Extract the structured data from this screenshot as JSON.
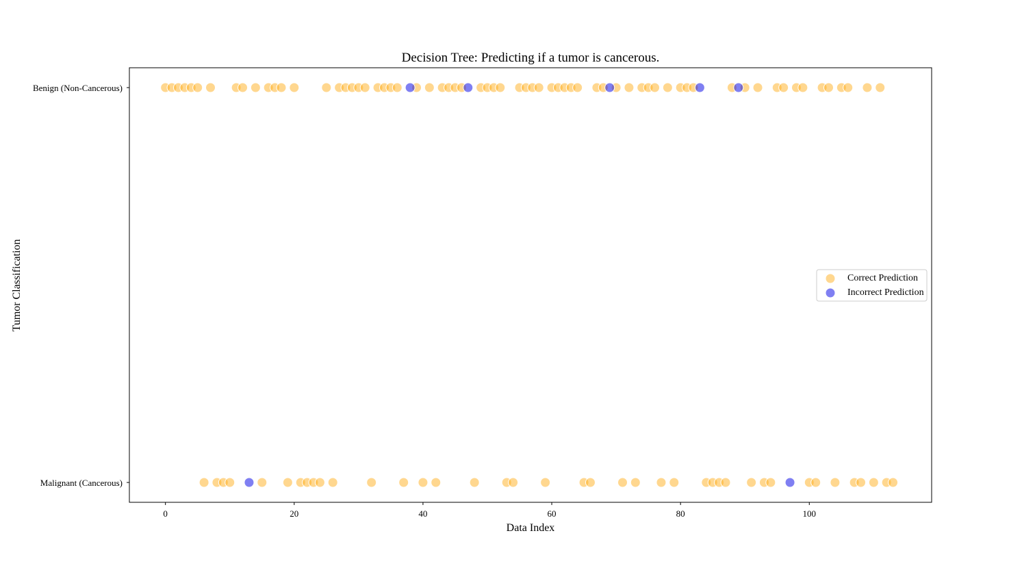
{
  "chart_data": {
    "type": "scatter",
    "title": "Decision Tree: Predicting if a tumor is cancerous.",
    "xlabel": "Data Index",
    "ylabel": "Tumor Classification",
    "xlim": [
      -5.6,
      119
    ],
    "x_ticks": [
      0,
      20,
      40,
      60,
      80,
      100
    ],
    "y_categories": [
      "Malignant (Cancerous)",
      "Benign (Non-Cancerous)"
    ],
    "grid": false,
    "legend": {
      "position": "center-right",
      "entries": [
        "Correct Prediction",
        "Incorrect Prediction"
      ]
    },
    "colors": {
      "correct": "#ffb01f",
      "incorrect": "#0000e6"
    },
    "series": [
      {
        "name": "Correct Prediction",
        "points": [
          {
            "x": 0,
            "y": "Benign (Non-Cancerous)"
          },
          {
            "x": 1,
            "y": "Benign (Non-Cancerous)"
          },
          {
            "x": 2,
            "y": "Benign (Non-Cancerous)"
          },
          {
            "x": 3,
            "y": "Benign (Non-Cancerous)"
          },
          {
            "x": 4,
            "y": "Benign (Non-Cancerous)"
          },
          {
            "x": 5,
            "y": "Benign (Non-Cancerous)"
          },
          {
            "x": 6,
            "y": "Malignant (Cancerous)"
          },
          {
            "x": 7,
            "y": "Benign (Non-Cancerous)"
          },
          {
            "x": 8,
            "y": "Malignant (Cancerous)"
          },
          {
            "x": 9,
            "y": "Malignant (Cancerous)"
          },
          {
            "x": 10,
            "y": "Malignant (Cancerous)"
          },
          {
            "x": 11,
            "y": "Benign (Non-Cancerous)"
          },
          {
            "x": 12,
            "y": "Benign (Non-Cancerous)"
          },
          {
            "x": 14,
            "y": "Benign (Non-Cancerous)"
          },
          {
            "x": 15,
            "y": "Malignant (Cancerous)"
          },
          {
            "x": 16,
            "y": "Benign (Non-Cancerous)"
          },
          {
            "x": 17,
            "y": "Benign (Non-Cancerous)"
          },
          {
            "x": 18,
            "y": "Benign (Non-Cancerous)"
          },
          {
            "x": 19,
            "y": "Malignant (Cancerous)"
          },
          {
            "x": 20,
            "y": "Benign (Non-Cancerous)"
          },
          {
            "x": 21,
            "y": "Malignant (Cancerous)"
          },
          {
            "x": 22,
            "y": "Malignant (Cancerous)"
          },
          {
            "x": 23,
            "y": "Malignant (Cancerous)"
          },
          {
            "x": 24,
            "y": "Malignant (Cancerous)"
          },
          {
            "x": 25,
            "y": "Benign (Non-Cancerous)"
          },
          {
            "x": 26,
            "y": "Malignant (Cancerous)"
          },
          {
            "x": 27,
            "y": "Benign (Non-Cancerous)"
          },
          {
            "x": 28,
            "y": "Benign (Non-Cancerous)"
          },
          {
            "x": 29,
            "y": "Benign (Non-Cancerous)"
          },
          {
            "x": 30,
            "y": "Benign (Non-Cancerous)"
          },
          {
            "x": 31,
            "y": "Benign (Non-Cancerous)"
          },
          {
            "x": 32,
            "y": "Malignant (Cancerous)"
          },
          {
            "x": 33,
            "y": "Benign (Non-Cancerous)"
          },
          {
            "x": 34,
            "y": "Benign (Non-Cancerous)"
          },
          {
            "x": 35,
            "y": "Benign (Non-Cancerous)"
          },
          {
            "x": 36,
            "y": "Benign (Non-Cancerous)"
          },
          {
            "x": 37,
            "y": "Malignant (Cancerous)"
          },
          {
            "x": 39,
            "y": "Benign (Non-Cancerous)"
          },
          {
            "x": 40,
            "y": "Malignant (Cancerous)"
          },
          {
            "x": 41,
            "y": "Benign (Non-Cancerous)"
          },
          {
            "x": 42,
            "y": "Malignant (Cancerous)"
          },
          {
            "x": 43,
            "y": "Benign (Non-Cancerous)"
          },
          {
            "x": 44,
            "y": "Benign (Non-Cancerous)"
          },
          {
            "x": 45,
            "y": "Benign (Non-Cancerous)"
          },
          {
            "x": 46,
            "y": "Benign (Non-Cancerous)"
          },
          {
            "x": 48,
            "y": "Malignant (Cancerous)"
          },
          {
            "x": 49,
            "y": "Benign (Non-Cancerous)"
          },
          {
            "x": 50,
            "y": "Benign (Non-Cancerous)"
          },
          {
            "x": 51,
            "y": "Benign (Non-Cancerous)"
          },
          {
            "x": 52,
            "y": "Benign (Non-Cancerous)"
          },
          {
            "x": 53,
            "y": "Malignant (Cancerous)"
          },
          {
            "x": 54,
            "y": "Malignant (Cancerous)"
          },
          {
            "x": 55,
            "y": "Benign (Non-Cancerous)"
          },
          {
            "x": 56,
            "y": "Benign (Non-Cancerous)"
          },
          {
            "x": 57,
            "y": "Benign (Non-Cancerous)"
          },
          {
            "x": 58,
            "y": "Benign (Non-Cancerous)"
          },
          {
            "x": 59,
            "y": "Malignant (Cancerous)"
          },
          {
            "x": 60,
            "y": "Benign (Non-Cancerous)"
          },
          {
            "x": 61,
            "y": "Benign (Non-Cancerous)"
          },
          {
            "x": 62,
            "y": "Benign (Non-Cancerous)"
          },
          {
            "x": 63,
            "y": "Benign (Non-Cancerous)"
          },
          {
            "x": 64,
            "y": "Benign (Non-Cancerous)"
          },
          {
            "x": 65,
            "y": "Malignant (Cancerous)"
          },
          {
            "x": 66,
            "y": "Malignant (Cancerous)"
          },
          {
            "x": 67,
            "y": "Benign (Non-Cancerous)"
          },
          {
            "x": 68,
            "y": "Benign (Non-Cancerous)"
          },
          {
            "x": 70,
            "y": "Benign (Non-Cancerous)"
          },
          {
            "x": 71,
            "y": "Malignant (Cancerous)"
          },
          {
            "x": 72,
            "y": "Benign (Non-Cancerous)"
          },
          {
            "x": 73,
            "y": "Malignant (Cancerous)"
          },
          {
            "x": 74,
            "y": "Benign (Non-Cancerous)"
          },
          {
            "x": 75,
            "y": "Benign (Non-Cancerous)"
          },
          {
            "x": 76,
            "y": "Benign (Non-Cancerous)"
          },
          {
            "x": 77,
            "y": "Malignant (Cancerous)"
          },
          {
            "x": 78,
            "y": "Benign (Non-Cancerous)"
          },
          {
            "x": 79,
            "y": "Malignant (Cancerous)"
          },
          {
            "x": 80,
            "y": "Benign (Non-Cancerous)"
          },
          {
            "x": 81,
            "y": "Benign (Non-Cancerous)"
          },
          {
            "x": 82,
            "y": "Benign (Non-Cancerous)"
          },
          {
            "x": 84,
            "y": "Malignant (Cancerous)"
          },
          {
            "x": 85,
            "y": "Malignant (Cancerous)"
          },
          {
            "x": 86,
            "y": "Malignant (Cancerous)"
          },
          {
            "x": 87,
            "y": "Malignant (Cancerous)"
          },
          {
            "x": 88,
            "y": "Benign (Non-Cancerous)"
          },
          {
            "x": 90,
            "y": "Benign (Non-Cancerous)"
          },
          {
            "x": 91,
            "y": "Malignant (Cancerous)"
          },
          {
            "x": 92,
            "y": "Benign (Non-Cancerous)"
          },
          {
            "x": 93,
            "y": "Malignant (Cancerous)"
          },
          {
            "x": 94,
            "y": "Malignant (Cancerous)"
          },
          {
            "x": 95,
            "y": "Benign (Non-Cancerous)"
          },
          {
            "x": 96,
            "y": "Benign (Non-Cancerous)"
          },
          {
            "x": 98,
            "y": "Benign (Non-Cancerous)"
          },
          {
            "x": 99,
            "y": "Benign (Non-Cancerous)"
          },
          {
            "x": 100,
            "y": "Malignant (Cancerous)"
          },
          {
            "x": 101,
            "y": "Malignant (Cancerous)"
          },
          {
            "x": 102,
            "y": "Benign (Non-Cancerous)"
          },
          {
            "x": 103,
            "y": "Benign (Non-Cancerous)"
          },
          {
            "x": 104,
            "y": "Malignant (Cancerous)"
          },
          {
            "x": 105,
            "y": "Benign (Non-Cancerous)"
          },
          {
            "x": 106,
            "y": "Benign (Non-Cancerous)"
          },
          {
            "x": 107,
            "y": "Malignant (Cancerous)"
          },
          {
            "x": 108,
            "y": "Malignant (Cancerous)"
          },
          {
            "x": 109,
            "y": "Benign (Non-Cancerous)"
          },
          {
            "x": 110,
            "y": "Malignant (Cancerous)"
          },
          {
            "x": 111,
            "y": "Benign (Non-Cancerous)"
          },
          {
            "x": 112,
            "y": "Malignant (Cancerous)"
          },
          {
            "x": 113,
            "y": "Malignant (Cancerous)"
          }
        ]
      },
      {
        "name": "Incorrect Prediction",
        "points": [
          {
            "x": 13,
            "y": "Malignant (Cancerous)"
          },
          {
            "x": 38,
            "y": "Benign (Non-Cancerous)"
          },
          {
            "x": 47,
            "y": "Benign (Non-Cancerous)"
          },
          {
            "x": 69,
            "y": "Benign (Non-Cancerous)"
          },
          {
            "x": 83,
            "y": "Benign (Non-Cancerous)"
          },
          {
            "x": 89,
            "y": "Benign (Non-Cancerous)"
          },
          {
            "x": 97,
            "y": "Malignant (Cancerous)"
          }
        ]
      }
    ]
  }
}
